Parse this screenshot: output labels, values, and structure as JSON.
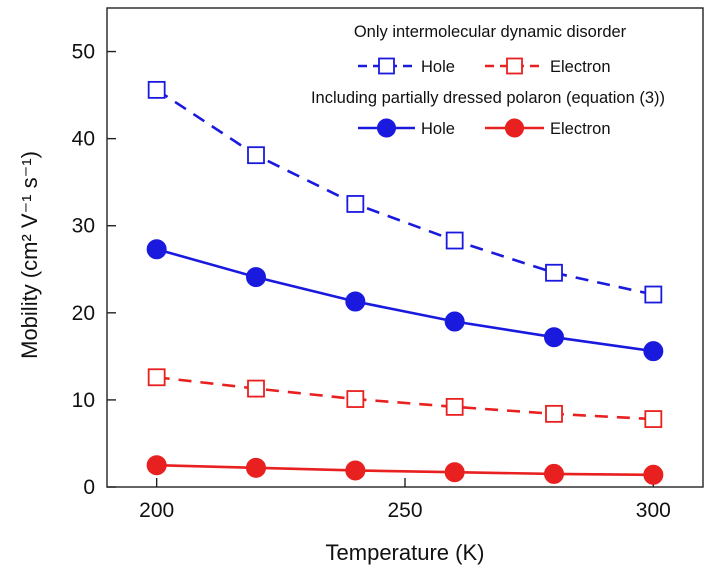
{
  "chart_data": {
    "type": "line",
    "title": "",
    "xlabel": "Temperature (K)",
    "ylabel": "Mobility (cm² V⁻¹ s⁻¹)",
    "xlim": [
      190,
      310
    ],
    "ylim": [
      0,
      55
    ],
    "x_ticks": [
      200,
      250,
      300
    ],
    "y_ticks": [
      0,
      10,
      20,
      30,
      40,
      50
    ],
    "x": [
      200,
      220,
      240,
      260,
      280,
      300
    ],
    "series": [
      {
        "name": "Hole",
        "group": "Only intermolecular dynamic disorder",
        "color": "#1a1adf",
        "marker": "open-square",
        "line": "dashed",
        "values": [
          45.6,
          38.1,
          32.5,
          28.3,
          24.6,
          22.1
        ]
      },
      {
        "name": "Electron",
        "group": "Only intermolecular dynamic disorder",
        "color": "#e8201f",
        "marker": "open-square",
        "line": "dashed",
        "values": [
          12.6,
          11.3,
          10.1,
          9.2,
          8.4,
          7.8
        ]
      },
      {
        "name": "Hole",
        "group": "Including partially dressed polaron (equation (3))",
        "color": "#1a1adf",
        "marker": "filled-circle",
        "line": "solid",
        "values": [
          27.3,
          24.1,
          21.3,
          19.0,
          17.2,
          15.6
        ]
      },
      {
        "name": "Electron",
        "group": "Including partially dressed polaron (equation (3))",
        "color": "#e8201f",
        "marker": "filled-circle",
        "line": "solid",
        "values": [
          2.5,
          2.2,
          1.9,
          1.7,
          1.5,
          1.4
        ]
      }
    ],
    "legend": {
      "group1_title": "Only intermolecular dynamic disorder",
      "group2_title": "Including partially dressed polaron (equation (3))",
      "hole_label": "Hole",
      "electron_label": "Electron",
      "placement": "top-right"
    }
  }
}
